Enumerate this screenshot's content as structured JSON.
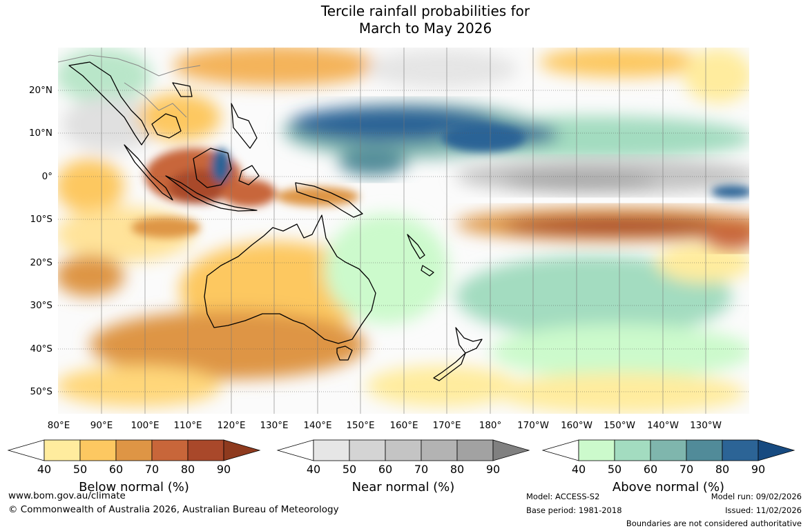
{
  "title": {
    "line1": "Tercile rainfall probabilities for",
    "line2": "March to May 2026"
  },
  "map": {
    "description_icon": "rainfall-probability-map",
    "lat_labels": [
      "20°N",
      "10°N",
      "0°",
      "10°S",
      "20°S",
      "30°S",
      "40°S",
      "50°S"
    ],
    "lon_labels": [
      "80°E",
      "90°E",
      "100°E",
      "110°E",
      "120°E",
      "130°E",
      "140°E",
      "150°E",
      "160°E",
      "170°E",
      "180°",
      "170°W",
      "160°W",
      "150°W",
      "140°W",
      "130°W"
    ]
  },
  "legends": [
    {
      "title": "Below normal (%)",
      "ticks": [
        "40",
        "50",
        "60",
        "70",
        "80",
        "90"
      ],
      "colors": [
        "#ffffff",
        "#ffec9e",
        "#fdc861",
        "#de9545",
        "#c8663a",
        "#a9482a",
        "#8e3a1e"
      ]
    },
    {
      "title": "Near normal (%)",
      "ticks": [
        "40",
        "50",
        "60",
        "70",
        "80",
        "90"
      ],
      "colors": [
        "#ffffff",
        "#e6e6e6",
        "#d4d4d4",
        "#c4c4c4",
        "#b3b3b3",
        "#a2a2a2",
        "#808080"
      ]
    },
    {
      "title": "Above normal (%)",
      "ticks": [
        "40",
        "50",
        "60",
        "70",
        "80",
        "90"
      ],
      "colors": [
        "#ffffff",
        "#ccfacc",
        "#a3dcc0",
        "#7fb6ad",
        "#518b99",
        "#2c6496",
        "#174a80"
      ]
    }
  ],
  "footer": {
    "website": "www.bom.gov.au/climate",
    "copyright": "© Commonwealth of Australia 2026, Australian Bureau of Meteorology",
    "model": "Model: ACCESS-S2",
    "base_period": "Base period: 1981-2018",
    "model_run": "Model run: 09/02/2026",
    "issued": "Issued: 11/02/2026",
    "disclaimer": "Boundaries are not considered authoritative"
  }
}
